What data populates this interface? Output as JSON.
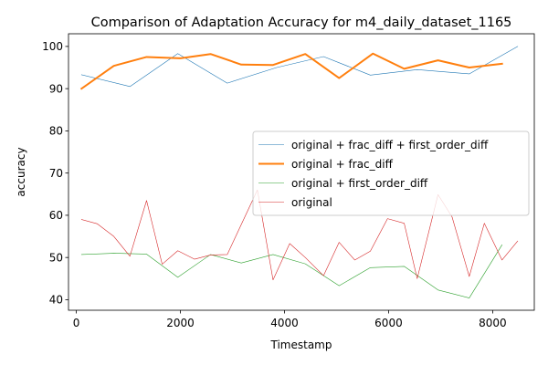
{
  "chart_data": {
    "type": "line",
    "title": "Comparison of Adaptation Accuracy for m4_daily_dataset_1165",
    "xlabel": "Timestamp",
    "ylabel": "accuracy",
    "xlim": [
      -150,
      8800
    ],
    "ylim": [
      37.5,
      103
    ],
    "xticks": [
      0,
      2000,
      4000,
      6000,
      8000
    ],
    "yticks": [
      40,
      50,
      60,
      70,
      80,
      90,
      100
    ],
    "grid": false,
    "legend_position": "center-right",
    "series": [
      {
        "name": "original + frac_diff + first_order_diff",
        "color": "#1f77b4",
        "linewidth": 0.6,
        "x": [
          100,
          1030,
          1950,
          2900,
          3850,
          4750,
          5650,
          6550,
          7550,
          8480
        ],
        "y": [
          93.3,
          90.5,
          98.3,
          91.3,
          95.0,
          97.6,
          93.2,
          94.5,
          93.5,
          100.0
        ]
      },
      {
        "name": "original + frac_diff",
        "color": "#ff7f0e",
        "linewidth": 2,
        "x": [
          100,
          720,
          1350,
          2000,
          2580,
          3170,
          3780,
          4400,
          5050,
          5700,
          6300,
          6950,
          7550,
          8180
        ],
        "y": [
          90.0,
          95.4,
          97.5,
          97.2,
          98.2,
          95.7,
          95.6,
          98.2,
          92.5,
          98.3,
          94.7,
          96.7,
          95.0,
          95.9
        ]
      },
      {
        "name": "original + first_order_diff",
        "color": "#2ca02c",
        "linewidth": 0.6,
        "x": [
          100,
          720,
          1350,
          1950,
          2580,
          3170,
          3780,
          4400,
          5050,
          5650,
          6300,
          6950,
          7550,
          8180
        ],
        "y": [
          50.7,
          51.0,
          50.8,
          45.3,
          50.7,
          48.7,
          50.7,
          48.5,
          43.3,
          47.6,
          47.9,
          42.3,
          40.4,
          53.0
        ]
      },
      {
        "name": "original",
        "color": "#d62728",
        "linewidth": 0.6,
        "x": [
          100,
          400,
          720,
          1030,
          1350,
          1650,
          1950,
          2270,
          2580,
          2900,
          3480,
          3780,
          4100,
          4400,
          4750,
          5050,
          5350,
          5650,
          5980,
          6300,
          6550,
          6950,
          7220,
          7550,
          7840,
          8180,
          8480
        ],
        "y": [
          59.0,
          58.0,
          55.0,
          50.3,
          63.5,
          48.4,
          51.6,
          49.6,
          50.6,
          50.7,
          66.0,
          44.7,
          53.3,
          50.0,
          45.7,
          53.6,
          49.4,
          51.5,
          59.2,
          58.1,
          45.0,
          64.9,
          59.6,
          45.5,
          58.1,
          49.4,
          53.9
        ]
      }
    ]
  }
}
